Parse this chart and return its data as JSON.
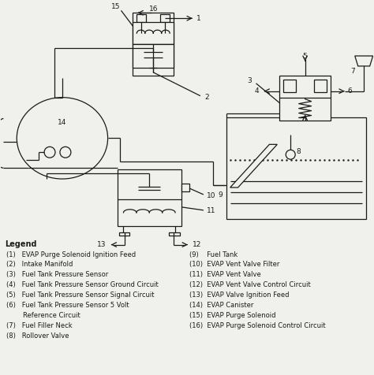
{
  "bg_color": "#f0f0ec",
  "line_color": "#1a1a1a",
  "legend_title": "Legend",
  "legend_col1": [
    "(1)   EVAP Purge Solenoid Ignition Feed",
    "(2)   Intake Manifold",
    "(3)   Fuel Tank Pressure Sensor",
    "(4)   Fuel Tank Pressure Sensor Ground Circuit",
    "(5)   Fuel Tank Pressure Sensor Signal Circuit",
    "(6)   Fuel Tank Pressure Sensor 5 Volt",
    "        Reference Circuit",
    "(7)   Fuel Filler Neck",
    "(8)   Rollover Valve"
  ],
  "legend_col2": [
    "(9)    Fuel Tank",
    "(10)  EVAP Vent Valve Filter",
    "(11)  EVAP Vent Valve",
    "(12)  EVAP Vent Valve Control Circuit",
    "(13)  EVAP Valve Ignition Feed",
    "(14)  EVAP Canister",
    "(15)  EVAP Purge Solenoid",
    "(16)  EVAP Purge Solenoid Control Circuit"
  ],
  "font_size_legend": 6.0,
  "font_size_numbers": 6.5
}
